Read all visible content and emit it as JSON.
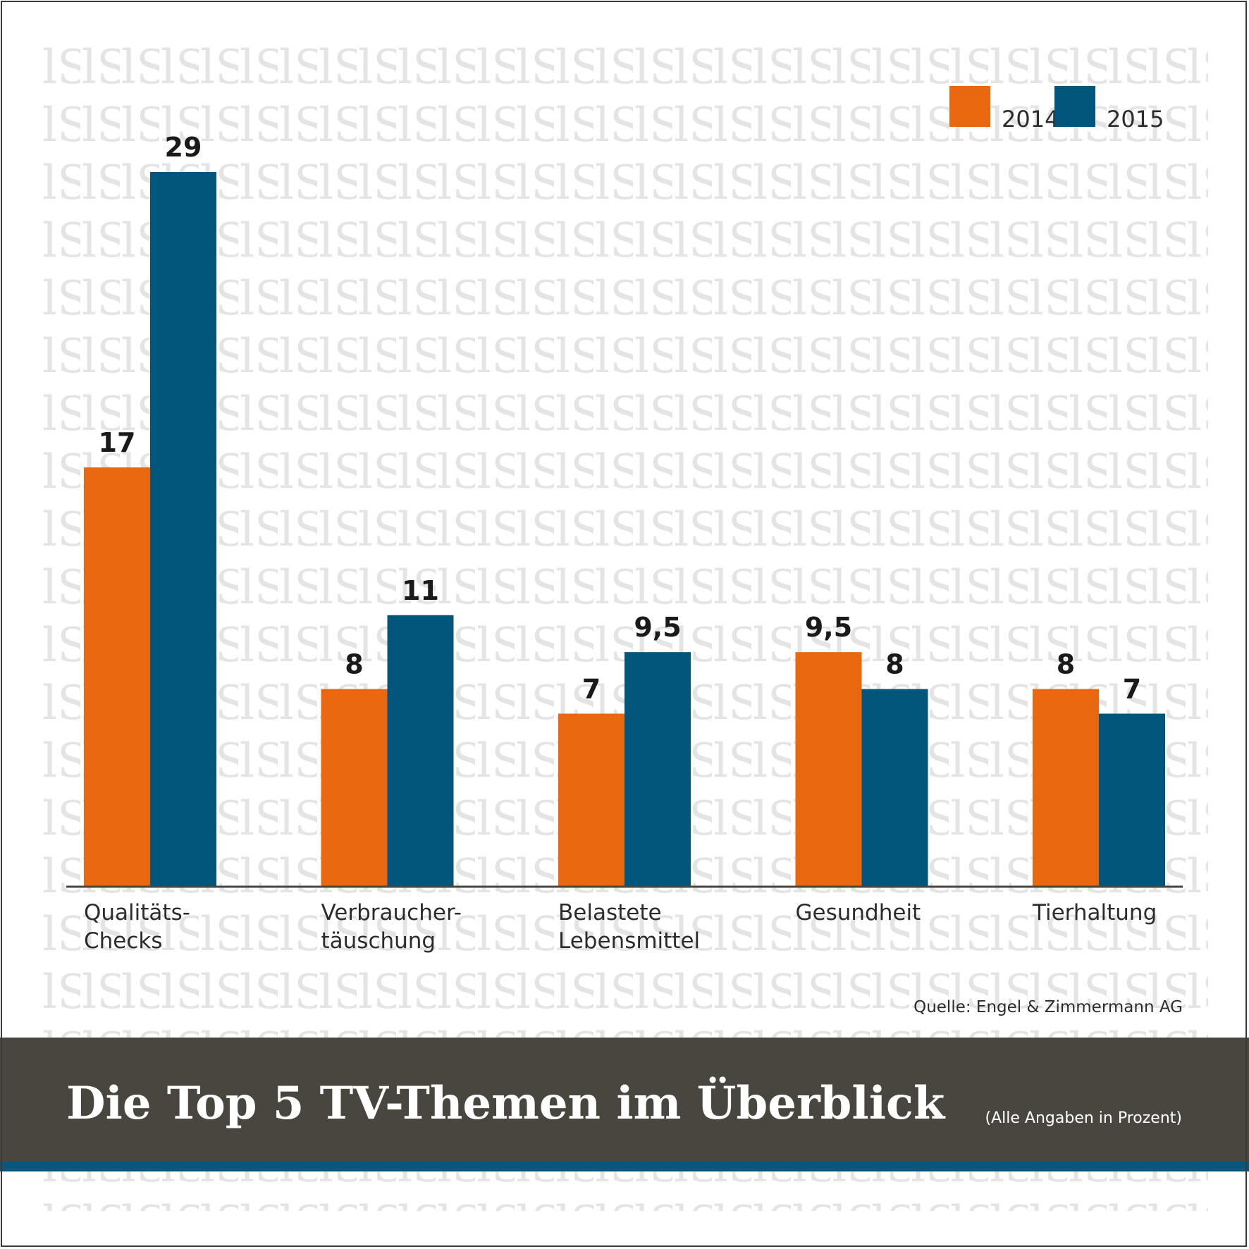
{
  "chart_data": {
    "type": "bar",
    "categories": [
      [
        "Qualitäts-",
        "Checks"
      ],
      [
        "Verbraucher-",
        "täuschung"
      ],
      [
        "Belastete",
        "Lebensmittel"
      ],
      [
        "Gesundheit"
      ],
      [
        "Tierhaltung"
      ]
    ],
    "series": [
      {
        "name": "2014",
        "color": "#e8670f",
        "values": [
          17,
          8,
          7,
          9.5,
          8
        ],
        "labels": [
          "17",
          "8",
          "7",
          "9,5",
          "8"
        ]
      },
      {
        "name": "2015",
        "color": "#02567b",
        "values": [
          29,
          11,
          9.5,
          8,
          7
        ],
        "labels": [
          "29",
          "11",
          "9,5",
          "8",
          "7"
        ]
      }
    ],
    "ylim": [
      0,
      29
    ],
    "grid": false,
    "legend_position": "top-right",
    "title": "Die Top 5 TV-Themen im Überblick",
    "note": "(Alle Angaben in Prozent)",
    "source": "Quelle: Engel & Zimmermann AG"
  },
  "colors": {
    "banner": "#48463f",
    "accent_stripe": "#07567b",
    "pattern": "#e6e6e6",
    "axis": "#48463f"
  }
}
